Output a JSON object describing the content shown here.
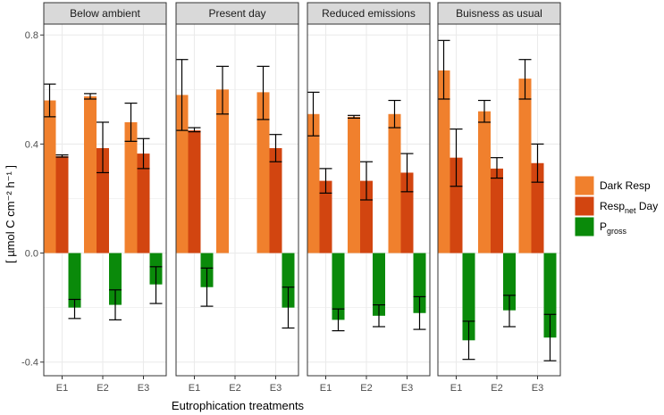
{
  "chart_data": {
    "type": "bar",
    "xlabel": "Eutrophication treatments",
    "ylabel": "[ µmol C cm⁻² h⁻¹ ]",
    "ylim": [
      -0.45,
      0.84
    ],
    "yticks": [
      -0.4,
      0.0,
      0.4,
      0.8
    ],
    "ytick_labels": [
      "-0.4",
      "0.0",
      "0.4",
      "0.8"
    ],
    "categories": [
      "E1",
      "E2",
      "E3"
    ],
    "colors": {
      "dark_resp": "#f0802d",
      "resp_net": "#d24510",
      "p_gross": "#0a8a0a",
      "panel_bg": "#ffffff",
      "grid": "#ebebeb",
      "strip_bg": "#d9d9d9",
      "border": "#333333"
    },
    "legend": {
      "position": "right",
      "entries": [
        {
          "key": "dark_resp",
          "label": "Dark Resp",
          "sub": "",
          "suffix": ""
        },
        {
          "key": "resp_net",
          "label": "Resp",
          "sub": "net",
          "suffix": " Day"
        },
        {
          "key": "p_gross",
          "label": "P",
          "sub": "gross",
          "suffix": ""
        }
      ]
    },
    "series_keys": [
      "dark_resp",
      "resp_net",
      "p_gross"
    ],
    "panels": [
      {
        "title": "Below ambient",
        "bars": [
          {
            "dark_resp": {
              "v": 0.56,
              "lo": 0.5,
              "hi": 0.62
            },
            "resp_net": {
              "v": 0.355,
              "lo": 0.352,
              "hi": 0.36
            },
            "p_gross": {
              "v": -0.2,
              "lo": -0.24,
              "hi": -0.17
            }
          },
          {
            "dark_resp": {
              "v": 0.575,
              "lo": 0.565,
              "hi": 0.585
            },
            "resp_net": {
              "v": 0.385,
              "lo": 0.295,
              "hi": 0.48
            },
            "p_gross": {
              "v": -0.19,
              "lo": -0.245,
              "hi": -0.135
            }
          },
          {
            "dark_resp": {
              "v": 0.48,
              "lo": 0.41,
              "hi": 0.55
            },
            "resp_net": {
              "v": 0.365,
              "lo": 0.31,
              "hi": 0.42
            },
            "p_gross": {
              "v": -0.115,
              "lo": -0.185,
              "hi": -0.05
            }
          }
        ]
      },
      {
        "title": "Present day",
        "bars": [
          {
            "dark_resp": {
              "v": 0.58,
              "lo": 0.45,
              "hi": 0.71
            },
            "resp_net": {
              "v": 0.45,
              "lo": 0.445,
              "hi": 0.46
            },
            "p_gross": {
              "v": -0.125,
              "lo": -0.195,
              "hi": -0.055
            }
          },
          {
            "dark_resp": {
              "v": 0.6,
              "lo": 0.51,
              "hi": 0.685
            },
            "resp_net": null,
            "p_gross": null
          },
          {
            "dark_resp": {
              "v": 0.59,
              "lo": 0.49,
              "hi": 0.685
            },
            "resp_net": {
              "v": 0.385,
              "lo": 0.335,
              "hi": 0.435
            },
            "p_gross": {
              "v": -0.2,
              "lo": -0.275,
              "hi": -0.125
            }
          }
        ]
      },
      {
        "title": "Reduced emissions",
        "bars": [
          {
            "dark_resp": {
              "v": 0.51,
              "lo": 0.43,
              "hi": 0.59
            },
            "resp_net": {
              "v": 0.265,
              "lo": 0.22,
              "hi": 0.31
            },
            "p_gross": {
              "v": -0.245,
              "lo": -0.285,
              "hi": -0.205
            }
          },
          {
            "dark_resp": {
              "v": 0.5,
              "lo": 0.495,
              "hi": 0.505
            },
            "resp_net": {
              "v": 0.265,
              "lo": 0.195,
              "hi": 0.335
            },
            "p_gross": {
              "v": -0.23,
              "lo": -0.27,
              "hi": -0.19
            }
          },
          {
            "dark_resp": {
              "v": 0.51,
              "lo": 0.46,
              "hi": 0.56
            },
            "resp_net": {
              "v": 0.295,
              "lo": 0.225,
              "hi": 0.365
            },
            "p_gross": {
              "v": -0.22,
              "lo": -0.28,
              "hi": -0.16
            }
          }
        ]
      },
      {
        "title": "Buisness as usual",
        "bars": [
          {
            "dark_resp": {
              "v": 0.67,
              "lo": 0.565,
              "hi": 0.78
            },
            "resp_net": {
              "v": 0.35,
              "lo": 0.245,
              "hi": 0.455
            },
            "p_gross": {
              "v": -0.32,
              "lo": -0.39,
              "hi": -0.25
            }
          },
          {
            "dark_resp": {
              "v": 0.52,
              "lo": 0.48,
              "hi": 0.56
            },
            "resp_net": {
              "v": 0.31,
              "lo": 0.275,
              "hi": 0.35
            },
            "p_gross": {
              "v": -0.21,
              "lo": -0.27,
              "hi": -0.155
            }
          },
          {
            "dark_resp": {
              "v": 0.64,
              "lo": 0.565,
              "hi": 0.71
            },
            "resp_net": {
              "v": 0.33,
              "lo": 0.26,
              "hi": 0.4
            },
            "p_gross": {
              "v": -0.31,
              "lo": -0.395,
              "hi": -0.225
            }
          }
        ]
      }
    ]
  }
}
